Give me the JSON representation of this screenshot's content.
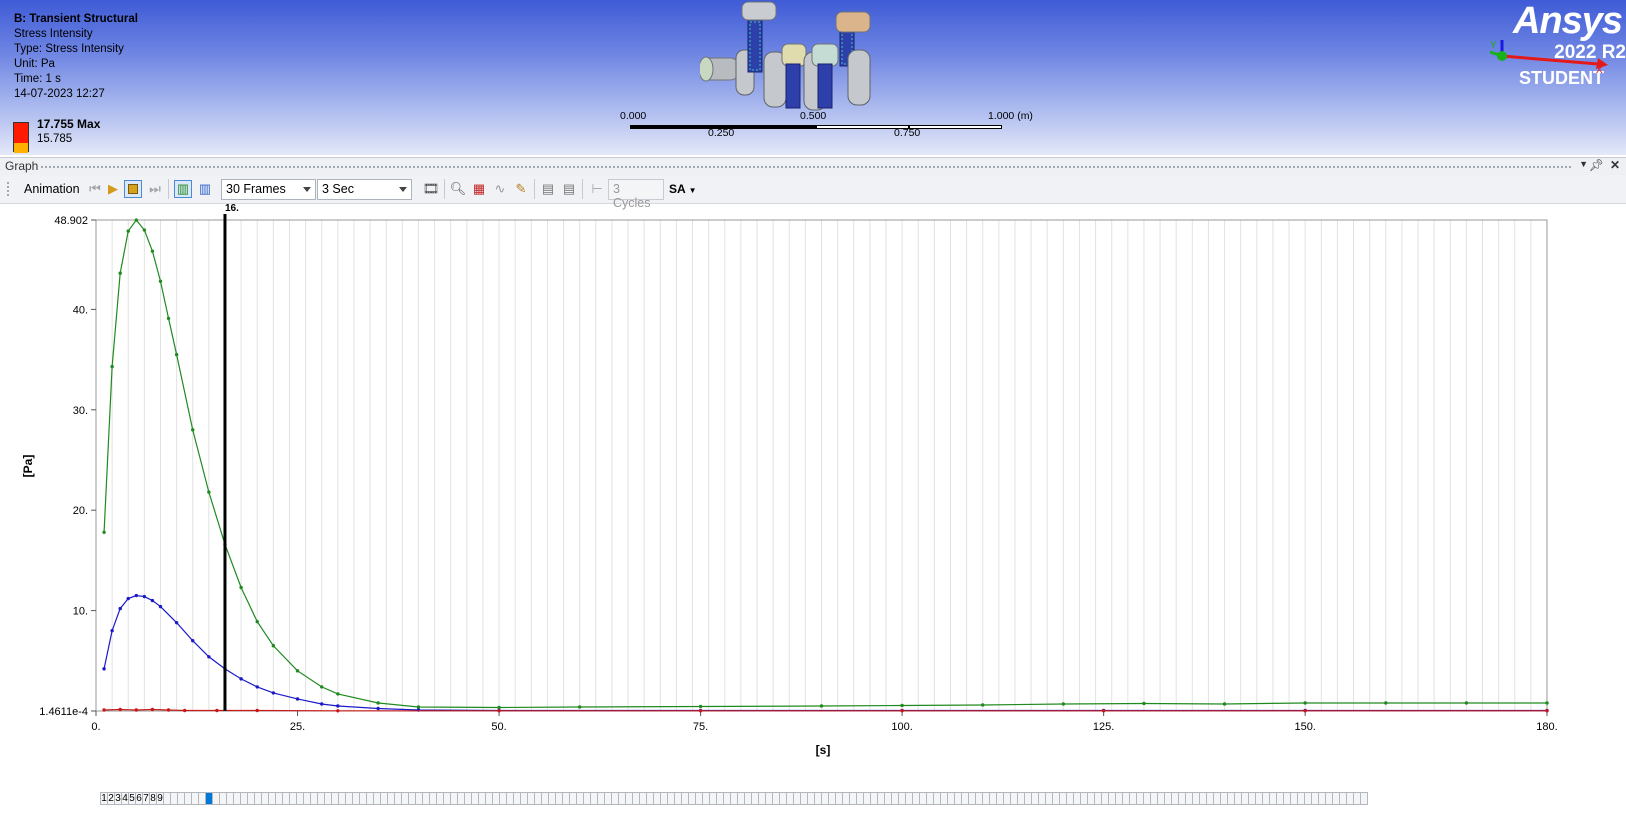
{
  "viewport": {
    "legend": {
      "title": "B: Transient Structural",
      "line1": "Stress Intensity",
      "type": "Type: Stress Intensity",
      "unit": "Unit: Pa",
      "time": "Time: 1 s",
      "date": "14-07-2023 12:27",
      "max_label": "17.755 Max",
      "second_value": "15.785",
      "colors": [
        "#ff1a00",
        "#ffb000"
      ]
    },
    "scale": {
      "top_labels": [
        "0.000",
        "0.500",
        "1.000 (m)"
      ],
      "bottom_labels": [
        "0.250",
        "0.750"
      ]
    },
    "logo": {
      "brand": "Ansys",
      "version": "2022 R2",
      "edition": "STUDENT"
    },
    "triad": {
      "y": "Y",
      "x": "X"
    }
  },
  "graph_panel": {
    "title": "Graph",
    "pin_icon": "pin-icon",
    "close_icon": "close-icon"
  },
  "toolbar": {
    "animation_label": "Animation",
    "frames_value": "30 Frames",
    "duration_value": "3 Sec",
    "cycles_placeholder": "3 Cycles",
    "sa_label": "SA"
  },
  "chart_data": {
    "type": "line",
    "xlabel": "[s]",
    "ylabel": "[Pa]",
    "xlim": [
      0,
      180
    ],
    "ylim": [
      0.00014611,
      48.902
    ],
    "x_ticks": [
      "0.",
      "25.",
      "50.",
      "75.",
      "100.",
      "125.",
      "150.",
      "180."
    ],
    "x_tick_values": [
      0,
      25,
      50,
      75,
      100,
      125,
      150,
      180
    ],
    "y_ticks": [
      "1.4611e-4",
      "10.",
      "20.",
      "30.",
      "40.",
      "48.902"
    ],
    "y_tick_values": [
      0.00014611,
      10,
      20,
      30,
      40,
      48.902
    ],
    "cursor": {
      "x": 16,
      "label": "16."
    },
    "grid": true,
    "series": [
      {
        "color": "#1f8a1f",
        "x": [
          1,
          2,
          3,
          4,
          5,
          6,
          7,
          8,
          9,
          10,
          12,
          14,
          16,
          18,
          20,
          22,
          25,
          28,
          30,
          35,
          40,
          50,
          60,
          75,
          90,
          100,
          110,
          120,
          130,
          140,
          150,
          160,
          170,
          180
        ],
        "y": [
          17.8,
          34.3,
          43.6,
          47.8,
          48.9,
          47.9,
          45.8,
          42.8,
          39.1,
          35.5,
          28.0,
          21.8,
          16.6,
          12.3,
          8.9,
          6.5,
          4.0,
          2.4,
          1.7,
          0.8,
          0.4,
          0.35,
          0.4,
          0.45,
          0.5,
          0.55,
          0.6,
          0.7,
          0.75,
          0.7,
          0.8,
          0.8,
          0.8,
          0.8
        ]
      },
      {
        "color": "#1a1ac8",
        "x": [
          1,
          2,
          3,
          4,
          5,
          6,
          7,
          8,
          10,
          12,
          14,
          16,
          18,
          20,
          22,
          25,
          28,
          30,
          35,
          40,
          50,
          75,
          100,
          125,
          150,
          180
        ],
        "y": [
          4.2,
          8.0,
          10.2,
          11.2,
          11.5,
          11.4,
          11.0,
          10.4,
          8.8,
          7.0,
          5.4,
          4.2,
          3.2,
          2.4,
          1.8,
          1.2,
          0.7,
          0.5,
          0.25,
          0.1,
          0.05,
          0.05,
          0.05,
          0.05,
          0.05,
          0.05
        ]
      },
      {
        "color": "#c81a1a",
        "x": [
          1,
          3,
          5,
          7,
          9,
          11,
          15,
          20,
          30,
          50,
          75,
          100,
          125,
          150,
          180
        ],
        "y": [
          0.1,
          0.15,
          0.1,
          0.15,
          0.1,
          0.05,
          0.05,
          0.05,
          0.02,
          0.02,
          0.02,
          0.02,
          0.02,
          0.02,
          0.02
        ]
      }
    ]
  },
  "frame_strip": {
    "labels": [
      "1",
      "2",
      "3",
      "4",
      "5",
      "6",
      "7",
      "8",
      "9"
    ],
    "active_index": 15
  }
}
